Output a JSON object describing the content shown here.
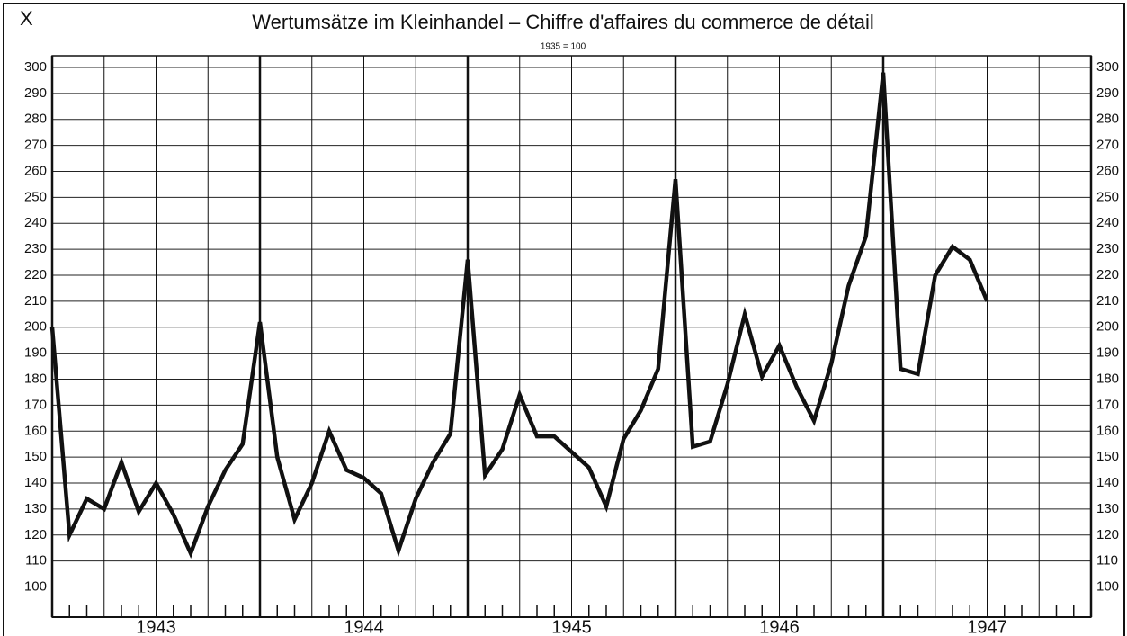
{
  "chart_data": {
    "type": "line",
    "corner_label": "X",
    "title": "Wertumsätze im Kleinhandel – Chiffre d'affaires du commerce de détail",
    "subtitle": "1935 = 100",
    "categories": [
      null,
      null,
      null,
      null,
      null,
      null,
      "1943",
      null,
      null,
      null,
      null,
      null,
      null,
      null,
      null,
      null,
      null,
      null,
      "1944",
      null,
      null,
      null,
      null,
      null,
      null,
      null,
      null,
      null,
      null,
      null,
      "1945",
      null,
      null,
      null,
      null,
      null,
      null,
      null,
      null,
      null,
      null,
      null,
      "1946",
      null,
      null,
      null,
      null,
      null,
      null,
      null,
      null,
      null,
      null,
      null,
      "1947",
      null,
      null,
      null,
      null,
      null,
      null
    ],
    "series": [
      {
        "color": "#111111",
        "values": [
          200,
          120,
          134,
          130,
          148,
          129,
          140,
          128,
          113,
          131,
          145,
          155,
          202,
          150,
          126,
          140,
          160,
          145,
          142,
          136,
          114,
          134,
          148,
          159,
          226,
          143,
          153,
          174,
          158,
          158,
          152,
          146,
          131,
          157,
          168,
          184,
          257,
          154,
          156,
          178,
          205,
          181,
          193,
          177,
          164,
          186,
          216,
          235,
          298,
          184,
          182,
          220,
          231,
          226,
          210,
          null,
          null,
          null,
          null,
          null,
          null
        ]
      }
    ],
    "ylim": [
      95,
      300
    ],
    "yticks": [
      100,
      110,
      120,
      130,
      140,
      150,
      160,
      170,
      180,
      190,
      200,
      210,
      220,
      230,
      240,
      250,
      260,
      270,
      280,
      290,
      300
    ],
    "grid": true
  }
}
